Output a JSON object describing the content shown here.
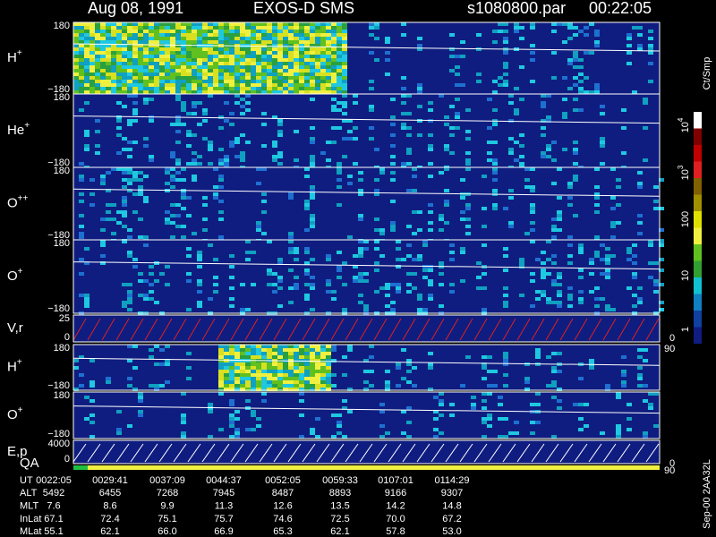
{
  "header": {
    "date": "Aug 08, 1991",
    "instrument": "EXOS-D SMS",
    "file": "s1080800.par",
    "time": "00:22:05"
  },
  "panels": [
    {
      "name": "H",
      "sup": "+",
      "top": "180",
      "bottom": "−180"
    },
    {
      "name": "He",
      "sup": "+",
      "top": "180",
      "bottom": "−180"
    },
    {
      "name": "O",
      "sup": "++",
      "top": "180",
      "bottom": "−180"
    },
    {
      "name": "O",
      "sup": "+",
      "top": "180",
      "bottom": "−180"
    },
    {
      "name": "V,r",
      "sup": "",
      "top": "25",
      "bottom": "0",
      "right_top": "90",
      "right_bottom": "0"
    },
    {
      "name": "H",
      "sup": "+",
      "top": "180",
      "bottom": "−180"
    },
    {
      "name": "O",
      "sup": "+",
      "top": "180",
      "bottom": "−180"
    },
    {
      "name": "E,p",
      "sup": "",
      "top": "4000",
      "bottom": "0",
      "right_top": "90",
      "right_bottom": "0"
    }
  ],
  "qa_label": "QA",
  "colorbar": {
    "unit": "Ct/Smp",
    "labels": [
      {
        "base": "10",
        "exp": "4"
      },
      {
        "base": "10",
        "exp": "3"
      },
      {
        "base": "100",
        "exp": ""
      },
      {
        "base": "10",
        "exp": ""
      },
      {
        "base": "1",
        "exp": ""
      }
    ]
  },
  "footer_id": "Sep-00  2AA32L",
  "table": {
    "rows": [
      {
        "label": "UT",
        "values": [
          "0022:05",
          "0029:41",
          "0037:09",
          "0044:37",
          "0052:05",
          "0059:33",
          "0107:01",
          "0114:29"
        ]
      },
      {
        "label": "ALT",
        "values": [
          "5492",
          "6455",
          "7268",
          "7945",
          "8487",
          "8893",
          "9166",
          "9307"
        ]
      },
      {
        "label": "MLT",
        "values": [
          "7.6",
          "8.6",
          "9.9",
          "11.3",
          "12.6",
          "13.5",
          "14.2",
          "14.8"
        ]
      },
      {
        "label": "InLat",
        "values": [
          "67.1",
          "72.4",
          "75.1",
          "75.7",
          "74.6",
          "72.5",
          "70.0",
          "67.2"
        ]
      },
      {
        "label": "MLat",
        "values": [
          "55.1",
          "62.1",
          "66.0",
          "66.9",
          "65.3",
          "62.1",
          "57.8",
          "53.0"
        ]
      }
    ]
  }
}
